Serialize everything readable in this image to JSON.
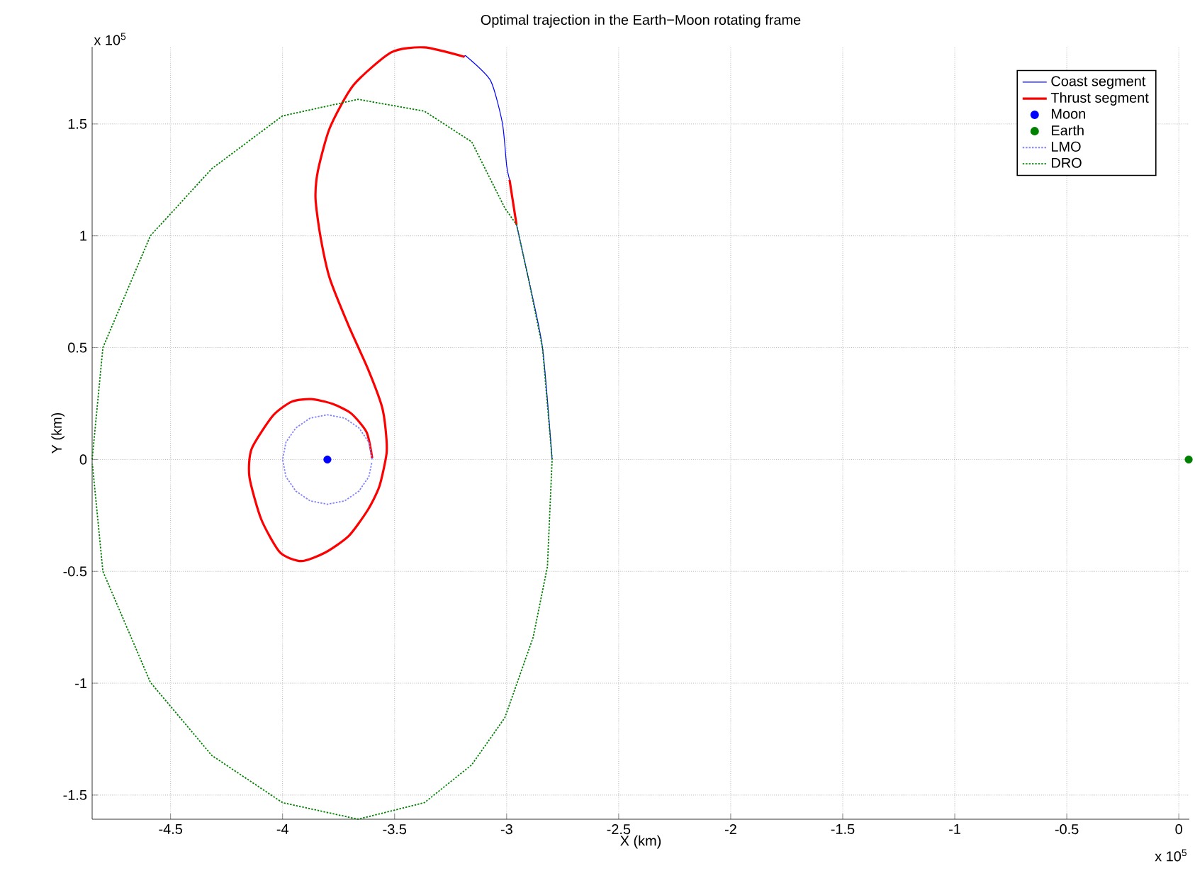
{
  "chart_data": {
    "type": "line",
    "title": "Optimal trajection in the Earth−Moon rotating frame",
    "xlabel": "X (km)",
    "ylabel": "Y (km)",
    "xlim": [
      -4.85,
      0.047
    ],
    "ylim": [
      -1.608,
      1.845
    ],
    "xticks": [
      -4.5,
      -4,
      -3.5,
      -3,
      -2.5,
      -2,
      -1.5,
      -1,
      -0.5,
      0
    ],
    "yticks": [
      -1.5,
      -1,
      -0.5,
      0,
      0.5,
      1,
      1.5
    ],
    "grid": true,
    "legend": "top right",
    "annotations": [
      "x 10$^{5}$",
      "x 10$^{5}$"
    ],
    "series": [
      {
        "name": "Coast segment",
        "color": "#0000ff",
        "line_style": "solid",
        "x": [
          -2.797,
          -2.84,
          -2.903,
          -2.956,
          null,
          -2.987,
          -3.0,
          -3.019,
          -3.072,
          -3.177,
          -3.188
        ],
        "values": [
          0,
          0.5,
          0.81,
          1.05,
          null,
          1.25,
          1.314,
          1.504,
          1.694,
          1.8,
          1.8
        ]
      },
      {
        "name": "Thrust segment",
        "color": "#ff0000",
        "line_style": "solid",
        "x": [
          -2.956,
          -2.987,
          null,
          -3.188,
          -3.367,
          -3.515,
          -3.684,
          -3.789,
          -3.842,
          -3.853,
          -3.831,
          -3.789,
          -3.705,
          -3.62,
          -3.557,
          -3.54,
          -3.536,
          -3.568,
          -3.62,
          -3.705,
          -3.81,
          -3.916,
          -4.011,
          -4.095,
          -4.148,
          -4.138,
          -4.043,
          -3.958,
          -3.873,
          -3.778,
          -3.694,
          -3.625,
          -3.6
        ],
        "values": [
          1.05,
          1.25,
          null,
          1.8,
          1.842,
          1.82,
          1.673,
          1.483,
          1.292,
          1.166,
          0.997,
          0.808,
          0.597,
          0.407,
          0.238,
          0.133,
          0.027,
          -0.12,
          -0.226,
          -0.342,
          -0.416,
          -0.454,
          -0.416,
          -0.268,
          -0.078,
          0.048,
          0.196,
          0.259,
          0.27,
          0.249,
          0.206,
          0.122,
          0.006
        ]
      },
      {
        "name": "Moon",
        "type": "scatter",
        "color": "#0000ff",
        "marker": "circle",
        "x": [
          -3.8
        ],
        "values": [
          0
        ]
      },
      {
        "name": "Earth",
        "type": "scatter",
        "color": "#008000",
        "marker": "circle",
        "x": [
          0.044
        ],
        "values": [
          0
        ]
      },
      {
        "name": "LMO",
        "color": "#8080ff",
        "line_style": "dotted",
        "x": [
          -3.6,
          -3.615,
          -3.659,
          -3.723,
          -3.8,
          -3.877,
          -3.941,
          -3.985,
          -4.0,
          -3.985,
          -3.941,
          -3.877,
          -3.8,
          -3.723,
          -3.659,
          -3.615,
          -3.601
        ],
        "values": [
          0,
          0.077,
          0.141,
          0.185,
          0.2,
          0.185,
          0.141,
          0.077,
          0,
          -0.077,
          -0.141,
          -0.185,
          -0.2,
          -0.185,
          -0.141,
          -0.077,
          -0.01
        ]
      },
      {
        "name": "DRO",
        "color": "#008000",
        "line_style": "dotted",
        "x": [
          -4.85,
          -4.802,
          -4.59,
          -4.316,
          -4.0,
          -3.663,
          -3.367,
          -3.156,
          -3.008,
          -2.956,
          -2.903,
          -2.84,
          -2.797,
          -2.818,
          -2.882,
          -3.008,
          -3.156,
          -3.367,
          -3.663,
          -4.0,
          -4.316,
          -4.59,
          -4.802,
          -4.849
        ],
        "values": [
          0,
          0.5,
          1.0,
          1.3,
          1.536,
          1.61,
          1.557,
          1.42,
          1.124,
          1.05,
          0.81,
          0.5,
          0,
          -0.479,
          -0.796,
          -1.154,
          -1.365,
          -1.534,
          -1.608,
          -1.534,
          -1.323,
          -0.996,
          -0.5,
          -0.02
        ]
      }
    ]
  }
}
